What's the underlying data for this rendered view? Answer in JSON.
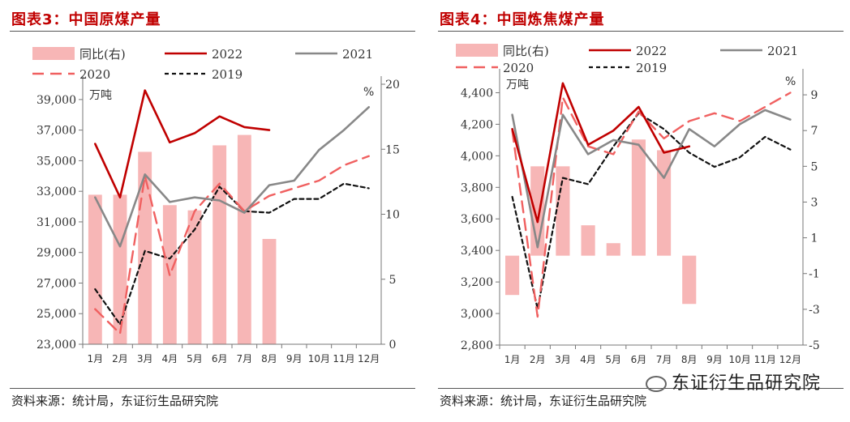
{
  "left": {
    "title": "图表3：中国原煤产量",
    "source": "资料来源：统计局，东证衍生品研究院",
    "chart_data": {
      "type": "bar+line",
      "title": "图表3：中国原煤产量",
      "y_left_label": "万吨",
      "y_right_label": "%",
      "y_left_range": [
        23000,
        40000
      ],
      "y_left_ticks": [
        "39,000",
        "37,000",
        "35,000",
        "33,000",
        "31,000",
        "29,000",
        "27,000",
        "25,000",
        "23,000"
      ],
      "y_left_tick_values": [
        39000,
        37000,
        35000,
        33000,
        31000,
        29000,
        27000,
        25000,
        23000
      ],
      "y_right_range": [
        0,
        20
      ],
      "y_right_ticks": [
        "20",
        "15",
        "10",
        "5",
        "0"
      ],
      "y_right_tick_values": [
        20,
        15,
        10,
        5,
        0
      ],
      "categories": [
        "1月",
        "2月",
        "3月",
        "4月",
        "5月",
        "6月",
        "7月",
        "8月",
        "9月",
        "10月",
        "11月",
        "12月"
      ],
      "bars": {
        "name": "同比(右)",
        "axis": "right",
        "baseline": 0,
        "values": [
          11.5,
          11.5,
          14.8,
          10.7,
          10.3,
          15.3,
          16.1,
          8.1,
          null,
          null,
          null,
          null
        ]
      },
      "series": [
        {
          "name": "2022",
          "axis": "left",
          "values": [
            36100,
            32600,
            39600,
            36200,
            36800,
            37900,
            37200,
            37000,
            null,
            null,
            null,
            null
          ]
        },
        {
          "name": "2021",
          "axis": "left",
          "values": [
            32600,
            29400,
            34100,
            32300,
            32600,
            32400,
            31600,
            33400,
            33700,
            35700,
            37000,
            38500
          ]
        },
        {
          "name": "2020",
          "axis": "left",
          "values": [
            25300,
            23700,
            34000,
            27500,
            31700,
            33500,
            31700,
            32700,
            33200,
            33700,
            34700,
            35300
          ]
        },
        {
          "name": "2019",
          "axis": "left",
          "values": [
            26600,
            24300,
            29100,
            28600,
            30500,
            33300,
            31700,
            31600,
            32500,
            32500,
            33500,
            33200
          ]
        }
      ],
      "legend": [
        {
          "label": "同比(右)"
        },
        {
          "label": "2022"
        },
        {
          "label": "2021"
        },
        {
          "label": "2020"
        },
        {
          "label": "2019"
        }
      ]
    }
  },
  "right": {
    "title": "图表4：中国炼焦煤产量",
    "source": "资料来源：统计局，东证衍生品研究院",
    "chart_data": {
      "type": "bar+line",
      "title": "图表4：中国炼焦煤产量",
      "y_left_label": "万吨",
      "y_right_label": "%",
      "y_left_range": [
        2800,
        4500
      ],
      "y_left_ticks": [
        "4,400",
        "4,200",
        "4,000",
        "3,800",
        "3,600",
        "3,400",
        "3,200",
        "3,000",
        "2,800"
      ],
      "y_left_tick_values": [
        4400,
        4200,
        4000,
        3800,
        3600,
        3400,
        3200,
        3000,
        2800
      ],
      "y_right_range": [
        -5,
        10
      ],
      "y_right_ticks": [
        "9",
        "7",
        "5",
        "3",
        "1",
        "-1",
        "-3",
        "-5"
      ],
      "y_right_tick_values": [
        9,
        7,
        5,
        3,
        1,
        -1,
        -3,
        -5
      ],
      "categories": [
        "1月",
        "2月",
        "3月",
        "4月",
        "5月",
        "6月",
        "7月",
        "8月",
        "9月",
        "10月",
        "11月",
        "12月"
      ],
      "bars": {
        "name": "同比(右)",
        "axis": "right",
        "baseline": 0,
        "values": [
          -2.2,
          5.0,
          5.0,
          1.7,
          0.7,
          6.5,
          5.9,
          -2.7,
          null,
          null,
          null,
          null
        ]
      },
      "series": [
        {
          "name": "2022",
          "axis": "left",
          "values": [
            4170,
            3580,
            4460,
            4070,
            4160,
            4310,
            4020,
            4060,
            null,
            null,
            null,
            null
          ]
        },
        {
          "name": "2021",
          "axis": "left",
          "values": [
            4260,
            3420,
            4260,
            4010,
            4100,
            4070,
            3860,
            4170,
            4060,
            4200,
            4290,
            4230
          ]
        },
        {
          "name": "2020",
          "axis": "left",
          "values": [
            4160,
            2980,
            4370,
            4060,
            4010,
            4280,
            4110,
            4220,
            4270,
            4220,
            4310,
            4400
          ]
        },
        {
          "name": "2019",
          "axis": "left",
          "values": [
            3740,
            3030,
            3860,
            3820,
            4060,
            4270,
            4170,
            4020,
            3930,
            3990,
            4120,
            4040
          ]
        }
      ],
      "legend": [
        {
          "label": "同比(右)"
        },
        {
          "label": "2022"
        },
        {
          "label": "2021"
        },
        {
          "label": "2020"
        },
        {
          "label": "2019"
        }
      ]
    }
  },
  "watermark": "东证衍生品研究院",
  "colors": {
    "2022": "#c00000",
    "2021": "#888888",
    "2020": "#f06060",
    "2019": "#111111",
    "bar": "#f7b6b6",
    "title": "#c00000"
  }
}
